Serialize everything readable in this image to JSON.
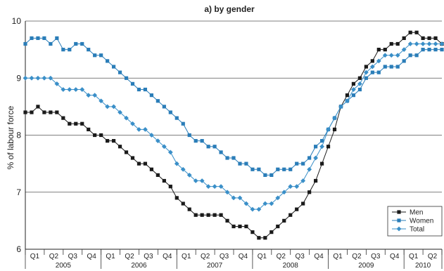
{
  "chart_data": {
    "type": "line",
    "title": "a) by gender",
    "ylabel": "% of labour force",
    "xlabel": "",
    "ylim": [
      6,
      10
    ],
    "yticks": [
      "6",
      "7",
      "8",
      "9",
      "10"
    ],
    "grid": "horizontal",
    "legend_position": "bottom-right",
    "quarter_labels": [
      "Q1",
      "Q2",
      "Q3",
      "Q4",
      "Q1",
      "Q2",
      "Q3",
      "Q4",
      "Q1",
      "Q2",
      "Q3",
      "Q4",
      "Q1",
      "Q2",
      "Q3",
      "Q4",
      "Q1",
      "Q2",
      "Q3",
      "Q4",
      "Q1",
      "Q2"
    ],
    "year_labels": [
      "2005",
      "2006",
      "2007",
      "2008",
      "2009",
      "2010"
    ],
    "series": [
      {
        "name": "Men",
        "color": "#1a1a1a",
        "marker": "square",
        "values": [
          8.4,
          8.4,
          8.5,
          8.4,
          8.4,
          8.4,
          8.3,
          8.2,
          8.2,
          8.2,
          8.1,
          8.0,
          8.0,
          7.9,
          7.9,
          7.8,
          7.7,
          7.6,
          7.5,
          7.5,
          7.4,
          7.3,
          7.2,
          7.1,
          6.9,
          6.8,
          6.7,
          6.6,
          6.6,
          6.6,
          6.6,
          6.6,
          6.5,
          6.4,
          6.4,
          6.4,
          6.3,
          6.2,
          6.2,
          6.3,
          6.4,
          6.5,
          6.6,
          6.7,
          6.8,
          7.0,
          7.2,
          7.5,
          7.8,
          8.1,
          8.5,
          8.7,
          8.9,
          9.0,
          9.2,
          9.3,
          9.5,
          9.5,
          9.6,
          9.6,
          9.7,
          9.8,
          9.8,
          9.7,
          9.7,
          9.7,
          9.6
        ]
      },
      {
        "name": "Women",
        "color": "#2a7db8",
        "marker": "square",
        "values": [
          9.6,
          9.7,
          9.7,
          9.7,
          9.6,
          9.7,
          9.5,
          9.5,
          9.6,
          9.6,
          9.5,
          9.4,
          9.4,
          9.3,
          9.2,
          9.1,
          9.0,
          8.9,
          8.8,
          8.8,
          8.7,
          8.6,
          8.5,
          8.4,
          8.3,
          8.2,
          8.0,
          7.9,
          7.9,
          7.8,
          7.8,
          7.7,
          7.6,
          7.6,
          7.5,
          7.5,
          7.4,
          7.4,
          7.3,
          7.3,
          7.4,
          7.4,
          7.4,
          7.5,
          7.5,
          7.6,
          7.8,
          7.9,
          8.1,
          8.3,
          8.5,
          8.6,
          8.7,
          8.8,
          9.0,
          9.1,
          9.1,
          9.2,
          9.2,
          9.2,
          9.3,
          9.4,
          9.4,
          9.5,
          9.5,
          9.5,
          9.5
        ]
      },
      {
        "name": "Total",
        "color": "#3a8fc8",
        "marker": "diamond",
        "values": [
          9.0,
          9.0,
          9.0,
          9.0,
          9.0,
          8.9,
          8.8,
          8.8,
          8.8,
          8.8,
          8.7,
          8.7,
          8.6,
          8.5,
          8.5,
          8.4,
          8.3,
          8.2,
          8.1,
          8.1,
          8.0,
          7.9,
          7.8,
          7.7,
          7.5,
          7.4,
          7.3,
          7.2,
          7.2,
          7.1,
          7.1,
          7.1,
          7.0,
          6.9,
          6.9,
          6.8,
          6.7,
          6.7,
          6.8,
          6.8,
          6.9,
          7.0,
          7.1,
          7.1,
          7.2,
          7.4,
          7.6,
          7.8,
          8.1,
          8.3,
          8.5,
          8.6,
          8.8,
          8.9,
          9.1,
          9.2,
          9.3,
          9.4,
          9.4,
          9.4,
          9.5,
          9.6,
          9.6,
          9.6,
          9.6,
          9.6,
          9.6
        ]
      }
    ]
  }
}
